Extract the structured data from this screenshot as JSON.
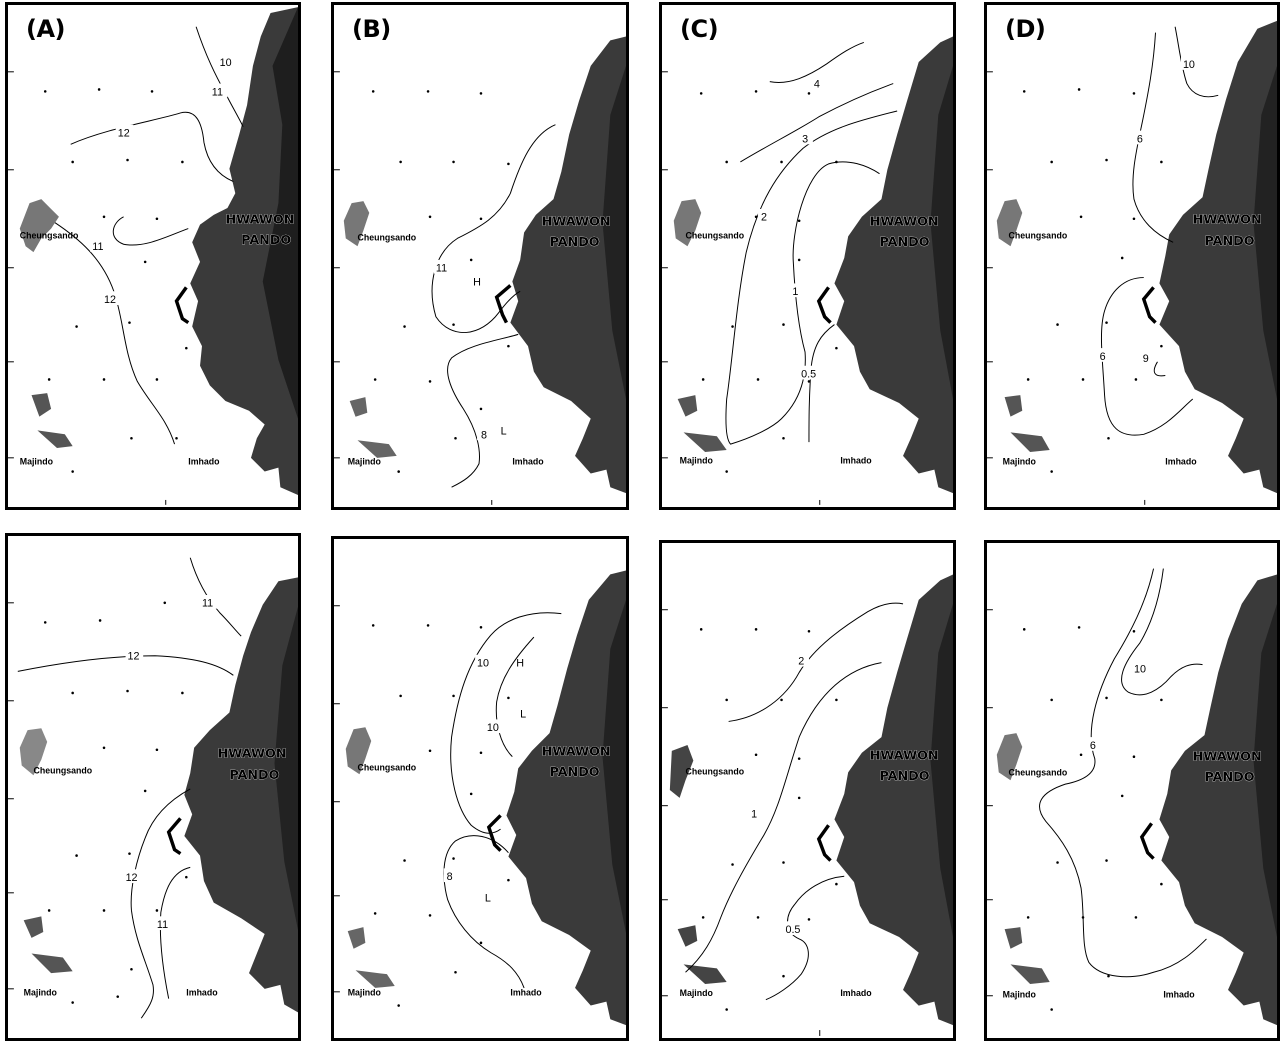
{
  "panels": [
    {
      "letter": "(A)",
      "contours": [
        {
          "label": "10"
        },
        {
          "label": "11"
        },
        {
          "label": "12"
        },
        {
          "label": "11"
        },
        {
          "label": "12"
        }
      ],
      "markers": []
    },
    {
      "letter": "(B)",
      "contours": [
        {
          "label": "11"
        },
        {
          "label": "8"
        }
      ],
      "markers": [
        "H",
        "L"
      ]
    },
    {
      "letter": "(C)",
      "contours": [
        {
          "label": "4"
        },
        {
          "label": "3"
        },
        {
          "label": "2"
        },
        {
          "label": "1"
        },
        {
          "label": "0.5"
        }
      ],
      "markers": []
    },
    {
      "letter": "(D)",
      "contours": [
        {
          "label": "10"
        },
        {
          "label": "6"
        },
        {
          "label": "6"
        },
        {
          "label": "9"
        }
      ],
      "markers": []
    },
    {
      "letter": "",
      "contours": [
        {
          "label": "11"
        },
        {
          "label": "12"
        },
        {
          "label": "12"
        },
        {
          "label": "11"
        }
      ],
      "markers": []
    },
    {
      "letter": "",
      "contours": [
        {
          "label": "10"
        },
        {
          "label": "10"
        },
        {
          "label": "8"
        }
      ],
      "markers": [
        "H",
        "L",
        "L"
      ]
    },
    {
      "letter": "",
      "contours": [
        {
          "label": "2"
        },
        {
          "label": "1"
        },
        {
          "label": "0.5"
        }
      ],
      "markers": []
    },
    {
      "letter": "",
      "contours": [
        {
          "label": "10"
        },
        {
          "label": "6"
        }
      ],
      "markers": []
    }
  ],
  "place_labels": {
    "island_a": "HWAWON",
    "island_b": "PANDO",
    "west": "Cheungsando",
    "southwest": "Majindo",
    "south": "Imhado"
  }
}
